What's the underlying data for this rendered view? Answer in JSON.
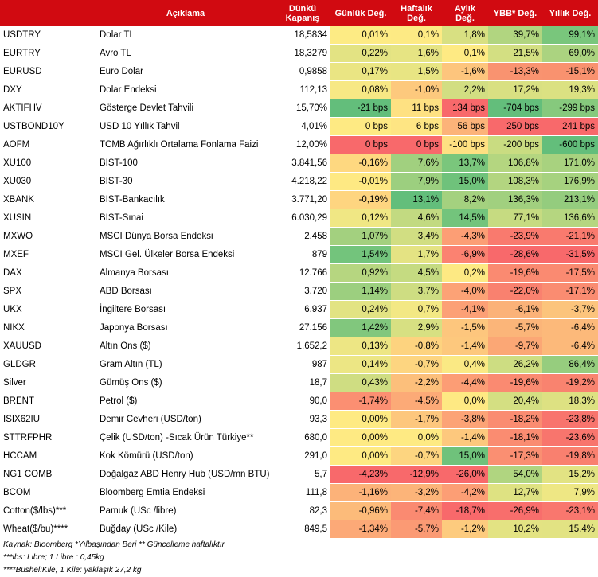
{
  "headers": [
    "",
    "Açıklama",
    "Dünkü\nKapanış",
    "Günlük Değ.",
    "Haftalık\nDeğ.",
    "Aylık\nDeğ.",
    "YBB* Değ.",
    "Yıllık Değ."
  ],
  "rows": [
    {
      "code": "USDTRY",
      "desc": "Dolar TL",
      "close": "18,5834",
      "d": "0,01%",
      "w": "0,1%",
      "m": "1,8%",
      "ytd": "39,7%",
      "y": "99,1%",
      "c": [
        "#fdeb84",
        "#fdea84",
        "#d8e082",
        "#b1d580",
        "#79c67c"
      ]
    },
    {
      "code": "EURTRY",
      "desc": "Avro TL",
      "close": "18,3279",
      "d": "0,22%",
      "w": "1,6%",
      "m": "0,1%",
      "ytd": "21,5%",
      "y": "69,0%",
      "c": [
        "#e3e383",
        "#e6e483",
        "#feea83",
        "#d3df82",
        "#abd380"
      ]
    },
    {
      "code": "EURUSD",
      "desc": "Euro Dolar",
      "close": "0,9858",
      "d": "0,17%",
      "w": "1,5%",
      "m": "-1,6%",
      "ytd": "-13,3%",
      "y": "-15,1%",
      "c": [
        "#eae583",
        "#e8e583",
        "#fdc57d",
        "#f99370",
        "#f9926f"
      ]
    },
    {
      "code": "DXY",
      "desc": "Dolar Endeksi",
      "close": "112,13",
      "d": "0,08%",
      "w": "-1,0%",
      "m": "2,2%",
      "ytd": "17,2%",
      "y": "19,3%",
      "c": [
        "#f7e884",
        "#fdc97d",
        "#d2de82",
        "#d9e082",
        "#dbe182"
      ]
    },
    {
      "code": "AKTIFHV",
      "desc": "Gösterge Devlet Tahvili",
      "close": "15,70%",
      "d": "-21 bps",
      "w": "11 bps",
      "m": "134 bps",
      "ytd": "-704 bps",
      "y": "-299 bps",
      "c": [
        "#63be7b",
        "#fee182",
        "#f8696b",
        "#63be7b",
        "#86c97d"
      ]
    },
    {
      "code": "USTBOND10Y",
      "desc": "USD 10 Yıllık Tahvil",
      "close": "4,01%",
      "d": "0 bps",
      "w": "6 bps",
      "m": "56 bps",
      "ytd": "250 bps",
      "y": "241 bps",
      "c": [
        "#feea83",
        "#fee583",
        "#fcb379",
        "#f8696b",
        "#f8696b"
      ]
    },
    {
      "code": "AOFM",
      "desc": "TCMB Ağırlıklı Ortalama Fonlama Faizi",
      "close": "12,00%",
      "d": "0 bps",
      "w": "0 bps",
      "m": "-100 bps",
      "ytd": "-200 bps",
      "y": "-600 bps",
      "c": [
        "#f8696b",
        "#f8696b",
        "#fee082",
        "#c9dc81",
        "#63be7b"
      ]
    },
    {
      "code": "XU100",
      "desc": "BIST-100",
      "close": "3.841,56",
      "d": "-0,16%",
      "w": "7,6%",
      "m": "13,7%",
      "ytd": "106,8%",
      "y": "171,0%",
      "c": [
        "#fed880",
        "#a1d07f",
        "#7ac67c",
        "#b4d680",
        "#a8d27f"
      ]
    },
    {
      "code": "XU030",
      "desc": "BIST-30",
      "close": "4.218,22",
      "d": "-0,01%",
      "w": "7,9%",
      "m": "15,0%",
      "ytd": "108,3%",
      "y": "176,9%",
      "c": [
        "#fee983",
        "#9ccf7f",
        "#6fc27b",
        "#b3d580",
        "#a6d27f"
      ]
    },
    {
      "code": "XBANK",
      "desc": "BIST-Bankacılık",
      "close": "3.771,20",
      "d": "-0,19%",
      "w": "13,1%",
      "m": "8,2%",
      "ytd": "136,3%",
      "y": "213,1%",
      "c": [
        "#fed580",
        "#63be7b",
        "#a4d17f",
        "#a1d07f",
        "#94cc7e"
      ]
    },
    {
      "code": "XUSIN",
      "desc": "BIST-Sınai",
      "close": "6.030,29",
      "d": "0,12%",
      "w": "4,6%",
      "m": "14,5%",
      "ytd": "77,1%",
      "y": "136,6%",
      "c": [
        "#f0e784",
        "#c2da81",
        "#73c47c",
        "#c6db81",
        "#b5d680"
      ]
    },
    {
      "code": "MXWO",
      "desc": "MSCI Dünya Borsa Endeksi",
      "close": "2.458",
      "d": "1,07%",
      "w": "3,4%",
      "m": "-4,3%",
      "ytd": "-23,9%",
      "y": "-21,1%",
      "c": [
        "#a3d07f",
        "#d1de82",
        "#fc9e75",
        "#f97a6e",
        "#f97a6e"
      ]
    },
    {
      "code": "MXEF",
      "desc": "MSCI Gel. Ülkeler Borsa Endeksi",
      "close": "879",
      "d": "1,54%",
      "w": "1,7%",
      "m": "-6,9%",
      "ytd": "-28,6%",
      "y": "-31,5%",
      "c": [
        "#73c47c",
        "#e4e383",
        "#fb8271",
        "#f8696b",
        "#f8696b"
      ]
    },
    {
      "code": "DAX",
      "desc": "Almanya Borsası",
      "close": "12.766",
      "d": "0,92%",
      "w": "4,5%",
      "m": "0,2%",
      "ytd": "-19,6%",
      "y": "-17,5%",
      "c": [
        "#b6d680",
        "#c5db81",
        "#fde983",
        "#fa8a71",
        "#fa8a71"
      ]
    },
    {
      "code": "SPX",
      "desc": "ABD Borsası",
      "close": "3.720",
      "d": "1,14%",
      "w": "3,7%",
      "m": "-4,0%",
      "ytd": "-22,0%",
      "y": "-17,1%",
      "c": [
        "#9ccf7f",
        "#ced d82",
        "#fca276",
        "#f9816f",
        "#fa8c71"
      ]
    },
    {
      "code": "UKX",
      "desc": "İngiltere Borsası",
      "close": "6.937",
      "d": "0,24%",
      "w": "0,7%",
      "m": "-4,1%",
      "ytd": "-6,1%",
      "y": "-3,7%",
      "c": [
        "#e2e383",
        "#f3e884",
        "#fca076",
        "#fbb278",
        "#fcc47c"
      ]
    },
    {
      "code": "NIKX",
      "desc": "Japonya Borsası",
      "close": "27.156",
      "d": "1,42%",
      "w": "2,9%",
      "m": "-1,5%",
      "ytd": "-5,7%",
      "y": "-6,4%",
      "c": [
        "#81c77d",
        "#d7e082",
        "#fdc67d",
        "#fbb579",
        "#fcb97a"
      ]
    },
    {
      "code": "XAUUSD",
      "desc": "Altın Ons ($)",
      "close": "1.652,2",
      "d": "0,13%",
      "w": "-0,8%",
      "m": "-1,4%",
      "ytd": "-9,7%",
      "y": "-6,4%",
      "c": [
        "#ede684",
        "#fdd37f",
        "#fdc87d",
        "#fba775",
        "#fcb97a"
      ]
    },
    {
      "code": "GLDGR",
      "desc": "Gram Altın (TL)",
      "close": "987",
      "d": "0,14%",
      "w": "-0,7%",
      "m": "0,4%",
      "ytd": "26,2%",
      "y": "86,4%",
      "c": [
        "#ece684",
        "#fdd580",
        "#fae984",
        "#cddd82",
        "#96cd7e"
      ]
    },
    {
      "code": "Silver",
      "desc": "Gümüş Ons ($)",
      "close": "18,7",
      "d": "0,43%",
      "w": "-2,2%",
      "m": "-4,4%",
      "ytd": "-19,6%",
      "y": "-19,2%",
      "c": [
        "#cfdd82",
        "#fcbf7b",
        "#fc9d75",
        "#fa8a71",
        "#f9836f"
      ]
    },
    {
      "code": "BRENT",
      "desc": "Petrol ($)",
      "close": "90,0",
      "d": "-1,74%",
      "w": "-4,5%",
      "m": "0,0%",
      "ytd": "20,4%",
      "y": "18,3%",
      "c": [
        "#fb8f72",
        "#fcaa77",
        "#fee983",
        "#d4df82",
        "#dde182"
      ]
    },
    {
      "code": "ISIX62IU",
      "desc": "Demir Cevheri (USD/ton)",
      "close": "93,3",
      "d": "0,00%",
      "w": "-1,7%",
      "m": "-3,8%",
      "ytd": "-18,2%",
      "y": "-23,8%",
      "c": [
        "#feea83",
        "#fdc77d",
        "#fca376",
        "#fa8c71",
        "#f8746d"
      ]
    },
    {
      "code": "STTRFPHR",
      "desc": "Çelik (USD/ton) -Sıcak Ürün Türkiye**",
      "close": "680,0",
      "d": "0,00%",
      "w": "0,0%",
      "m": "-1,4%",
      "ytd": "-18,1%",
      "y": "-23,6%",
      "c": [
        "#feea83",
        "#feea83",
        "#fdc87d",
        "#fa8c71",
        "#f8756d"
      ]
    },
    {
      "code": "HCCAM",
      "desc": "Kok Kömürü (USD/ton)",
      "close": "291,0",
      "d": "0,00%",
      "w": "-0,7%",
      "m": "15,0%",
      "ytd": "-17,3%",
      "y": "-19,8%",
      "c": [
        "#feea83",
        "#fdd580",
        "#6fc27b",
        "#fa8f72",
        "#f9806f"
      ]
    },
    {
      "code": "NG1 COMB",
      "desc": "Doğalgaz ABD Henry Hub (USD/mn BTU)",
      "close": "5,7",
      "d": "-4,23%",
      "w": "-12,9%",
      "m": "-26,0%",
      "ytd": "54,0%",
      "y": "15,2%",
      "c": [
        "#f8696b",
        "#f8696b",
        "#f8696b",
        "#b0d580",
        "#e2e383"
      ]
    },
    {
      "code": "BCOM",
      "desc": "Bloomberg Emtia Endeksi",
      "close": "111,8",
      "d": "-1,16%",
      "w": "-3,2%",
      "m": "-4,2%",
      "ytd": "12,7%",
      "y": "7,9%",
      "c": [
        "#fcb279",
        "#fcb479",
        "#fc9e75",
        "#dee282",
        "#eee784"
      ]
    },
    {
      "code": "Cotton($/lbs)***",
      "desc": "Pamuk (USc /libre)",
      "close": "82,3",
      "d": "-0,96%",
      "w": "-7,4%",
      "m": "-18,7%",
      "ytd": "-26,9%",
      "y": "-23,1%",
      "c": [
        "#fcbb7a",
        "#fa8a71",
        "#f8696b",
        "#f86e6c",
        "#f9776e"
      ]
    },
    {
      "code": "Wheat($/bu)****",
      "desc": "Buğday (USc /Kile)",
      "close": "849,5",
      "d": "-1,34%",
      "w": "-5,7%",
      "m": "-1,2%",
      "ytd": "10,2%",
      "y": "15,4%",
      "c": [
        "#fca977",
        "#fb9a74",
        "#fdcb7e",
        "#e3e383",
        "#e2e383"
      ]
    }
  ],
  "notes": [
    "Kaynak: Bloomberg *Yılbaşından Beri  ** Güncelleme haftalıktır",
    "***lbs: Libre; 1 Libre : 0,45kg",
    "****Bushel:Kile; 1 Kile: yaklaşık 27,2 kg"
  ]
}
